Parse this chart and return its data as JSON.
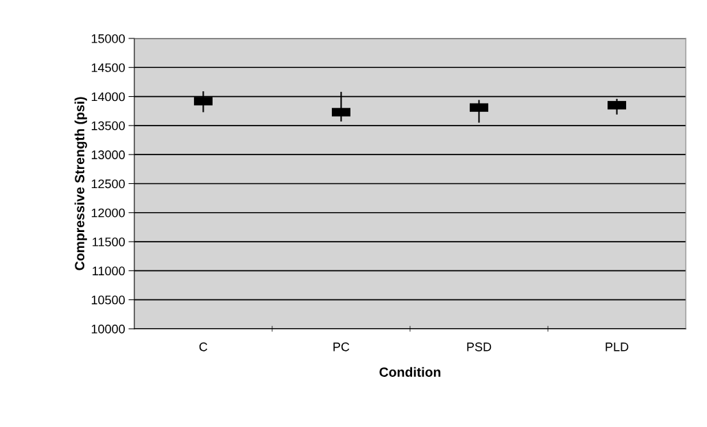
{
  "chart_data": {
    "type": "scatter",
    "xlabel": "Condition",
    "ylabel": "Compressive Strength (psi)",
    "categories": [
      "C",
      "PC",
      "PSD",
      "PLD"
    ],
    "values": [
      13920,
      13730,
      13810,
      13850
    ],
    "errors": [
      [
        13730,
        14090
      ],
      [
        13570,
        14080
      ],
      [
        13550,
        13940
      ],
      [
        13690,
        13960
      ]
    ],
    "color": "#000000",
    "marker": "square",
    "ylim": [
      10000,
      15000
    ],
    "yticks": [
      10000,
      10500,
      11000,
      11500,
      12000,
      12500,
      13000,
      13500,
      14000,
      14500,
      15000
    ],
    "grid": "y"
  }
}
